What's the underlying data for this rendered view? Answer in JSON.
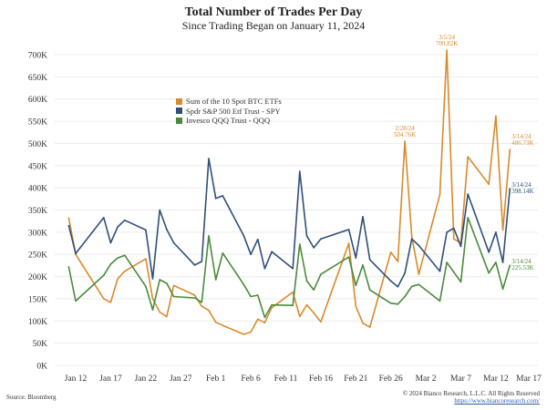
{
  "chart_data": {
    "type": "line",
    "title": "Total Number of Trades Per Day",
    "subtitle": "Since Trading Began on January 11, 2024",
    "ylim": [
      0,
      700000
    ],
    "y_ticks": [
      {
        "value": 0,
        "label": "0K"
      },
      {
        "value": 50000,
        "label": "50K"
      },
      {
        "value": 100000,
        "label": "100K"
      },
      {
        "value": 150000,
        "label": "150K"
      },
      {
        "value": 200000,
        "label": "200K"
      },
      {
        "value": 250000,
        "label": "250K"
      },
      {
        "value": 300000,
        "label": "300K"
      },
      {
        "value": 350000,
        "label": "350K"
      },
      {
        "value": 400000,
        "label": "400K"
      },
      {
        "value": 450000,
        "label": "450K"
      },
      {
        "value": 500000,
        "label": "500K"
      },
      {
        "value": 550000,
        "label": "550K"
      },
      {
        "value": 600000,
        "label": "600K"
      },
      {
        "value": 650000,
        "label": "650K"
      },
      {
        "value": 700000,
        "label": "700K"
      }
    ],
    "x_ticks": [
      {
        "date": "2024-01-12",
        "label": "Jan 12"
      },
      {
        "date": "2024-01-17",
        "label": "Jan 17"
      },
      {
        "date": "2024-01-22",
        "label": "Jan 22"
      },
      {
        "date": "2024-01-27",
        "label": "Jan 27"
      },
      {
        "date": "2024-02-01",
        "label": "Feb 1"
      },
      {
        "date": "2024-02-06",
        "label": "Feb 6"
      },
      {
        "date": "2024-02-11",
        "label": "Feb 11"
      },
      {
        "date": "2024-02-16",
        "label": "Feb 16"
      },
      {
        "date": "2024-02-21",
        "label": "Feb 21"
      },
      {
        "date": "2024-02-26",
        "label": "Feb 26"
      },
      {
        "date": "2024-03-02",
        "label": "Mar 2"
      },
      {
        "date": "2024-03-07",
        "label": "Mar 7"
      },
      {
        "date": "2024-03-12",
        "label": "Mar 12"
      },
      {
        "date": "2024-03-17",
        "label": "Mar 17"
      }
    ],
    "xlim": [
      "2024-01-09",
      "2024-03-18"
    ],
    "grid": "horizontal",
    "legend_placement": "upper-left-center",
    "x": [
      "2024-01-11",
      "2024-01-12",
      "2024-01-16",
      "2024-01-17",
      "2024-01-18",
      "2024-01-19",
      "2024-01-22",
      "2024-01-23",
      "2024-01-24",
      "2024-01-25",
      "2024-01-26",
      "2024-01-29",
      "2024-01-30",
      "2024-01-31",
      "2024-02-01",
      "2024-02-02",
      "2024-02-05",
      "2024-02-06",
      "2024-02-07",
      "2024-02-08",
      "2024-02-09",
      "2024-02-12",
      "2024-02-13",
      "2024-02-14",
      "2024-02-15",
      "2024-02-16",
      "2024-02-20",
      "2024-02-21",
      "2024-02-22",
      "2024-02-23",
      "2024-02-26",
      "2024-02-27",
      "2024-02-28",
      "2024-02-29",
      "2024-03-01",
      "2024-03-04",
      "2024-03-05",
      "2024-03-06",
      "2024-03-07",
      "2024-03-08",
      "2024-03-11",
      "2024-03-12",
      "2024-03-13",
      "2024-03-14"
    ],
    "series": [
      {
        "name": "Sum of the 10 Spot BTC ETFs",
        "color": "#d98a2b",
        "values": [
          332000,
          250000,
          150000,
          142000,
          195000,
          212000,
          240000,
          150000,
          120000,
          110000,
          180000,
          158000,
          133000,
          124000,
          97000,
          90000,
          70000,
          75000,
          104000,
          96000,
          130000,
          165000,
          110000,
          136000,
          118000,
          98000,
          275000,
          133000,
          95000,
          86000,
          255000,
          234000,
          504760,
          290000,
          205000,
          385000,
          709820,
          285000,
          275000,
          470000,
          408000,
          562000,
          305000,
          486730
        ]
      },
      {
        "name": "Spdr S&P 500 Etf Trust - SPY",
        "color": "#2f4f7a",
        "values": [
          315000,
          252000,
          333000,
          276000,
          312000,
          327000,
          305000,
          195000,
          350000,
          306000,
          276000,
          226000,
          234000,
          466000,
          376000,
          382000,
          292000,
          250000,
          284000,
          218000,
          256000,
          218000,
          437000,
          292000,
          265000,
          285000,
          306000,
          242000,
          335000,
          238000,
          190000,
          177000,
          208000,
          285000,
          270000,
          212000,
          300000,
          309000,
          268000,
          386000,
          255000,
          300000,
          232000,
          398140
        ]
      },
      {
        "name": "Invesco QQQ Trust - QQQ",
        "color": "#4a8a3c",
        "values": [
          222000,
          145000,
          203000,
          228000,
          242000,
          248000,
          178000,
          125000,
          193000,
          185000,
          155000,
          152000,
          142000,
          292000,
          193000,
          253000,
          182000,
          155000,
          158000,
          108000,
          136000,
          135000,
          273000,
          190000,
          170000,
          205000,
          244000,
          180000,
          226000,
          170000,
          140000,
          138000,
          155000,
          178000,
          182000,
          145000,
          232000,
          210000,
          188000,
          333000,
          208000,
          232000,
          172000,
          225530
        ]
      }
    ],
    "annotations": [
      {
        "series": 0,
        "date": "2024-02-28",
        "lines": [
          "2/28/24",
          "504.76K"
        ],
        "anchor": "above"
      },
      {
        "series": 0,
        "date": "2024-03-05",
        "lines": [
          "3/5/24",
          "709.82K"
        ],
        "anchor": "above"
      },
      {
        "series": 0,
        "date": "2024-03-14",
        "lines": [
          "3/14/24",
          "486.73K"
        ],
        "anchor": "above-right"
      },
      {
        "series": 1,
        "date": "2024-03-14",
        "lines": [
          "3/14/24",
          "398.14K"
        ],
        "anchor": "right"
      },
      {
        "series": 2,
        "date": "2024-03-14",
        "lines": [
          "3/14/24",
          "225.53K"
        ],
        "anchor": "right"
      }
    ]
  },
  "footer": {
    "source": "Source: Bloomberg",
    "copyright": "© 2024 Bianco Research, L.L.C. All Rights Reserved",
    "url": "https://www.biancoresearch.com/"
  }
}
